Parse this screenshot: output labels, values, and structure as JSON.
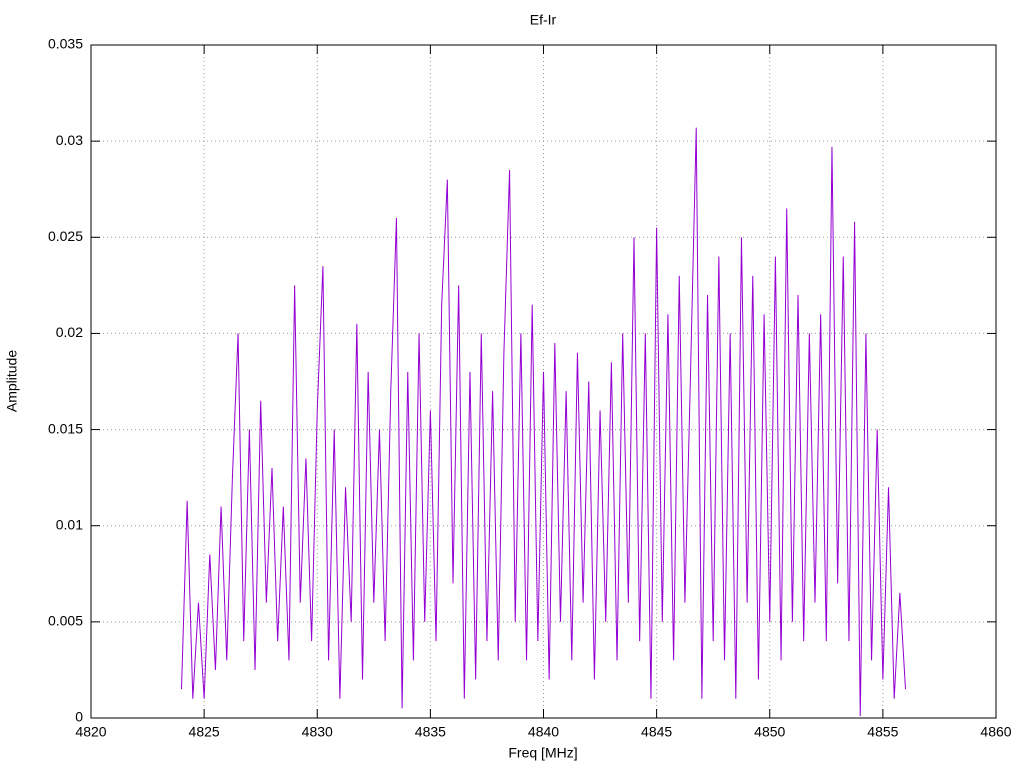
{
  "chart_data": {
    "type": "line",
    "title": "Ef-Ir",
    "x_label": "Freq [MHz]",
    "y_label": "Amplitude",
    "x": [
      4824.0,
      4824.25,
      4824.5,
      4824.75,
      4825.0,
      4825.25,
      4825.5,
      4825.75,
      4826.0,
      4826.25,
      4826.5,
      4826.75,
      4827.0,
      4827.25,
      4827.5,
      4827.75,
      4828.0,
      4828.25,
      4828.5,
      4828.75,
      4829.0,
      4829.25,
      4829.5,
      4829.75,
      4830.0,
      4830.25,
      4830.5,
      4830.75,
      4831.0,
      4831.25,
      4831.5,
      4831.75,
      4832.0,
      4832.25,
      4832.5,
      4832.75,
      4833.0,
      4833.25,
      4833.5,
      4833.75,
      4834.0,
      4834.25,
      4834.5,
      4834.75,
      4835.0,
      4835.25,
      4835.5,
      4835.75,
      4836.0,
      4836.25,
      4836.5,
      4836.75,
      4837.0,
      4837.25,
      4837.5,
      4837.75,
      4838.0,
      4838.25,
      4838.5,
      4838.75,
      4839.0,
      4839.25,
      4839.5,
      4839.75,
      4840.0,
      4840.25,
      4840.5,
      4840.75,
      4841.0,
      4841.25,
      4841.5,
      4841.75,
      4842.0,
      4842.25,
      4842.5,
      4842.75,
      4843.0,
      4843.25,
      4843.5,
      4843.75,
      4844.0,
      4844.25,
      4844.5,
      4844.75,
      4845.0,
      4845.25,
      4845.5,
      4845.75,
      4846.0,
      4846.25,
      4846.5,
      4846.75,
      4847.0,
      4847.25,
      4847.5,
      4847.75,
      4848.0,
      4848.25,
      4848.5,
      4848.75,
      4849.0,
      4849.25,
      4849.5,
      4849.75,
      4850.0,
      4850.25,
      4850.5,
      4850.75,
      4851.0,
      4851.25,
      4851.5,
      4851.75,
      4852.0,
      4852.25,
      4852.5,
      4852.75,
      4853.0,
      4853.25,
      4853.5,
      4853.75,
      4854.0,
      4854.25,
      4854.5,
      4854.75,
      4855.0,
      4855.25,
      4855.5,
      4855.75,
      4856.0
    ],
    "series": [
      {
        "color": "#9400d3",
        "values": [
          0.0015,
          0.0113,
          0.001,
          0.006,
          0.001,
          0.0085,
          0.0025,
          0.011,
          0.003,
          0.0125,
          0.02,
          0.004,
          0.015,
          0.0025,
          0.0165,
          0.006,
          0.013,
          0.004,
          0.011,
          0.003,
          0.0225,
          0.006,
          0.0135,
          0.004,
          0.016,
          0.0235,
          0.003,
          0.015,
          0.001,
          0.012,
          0.005,
          0.0205,
          0.002,
          0.018,
          0.006,
          0.015,
          0.004,
          0.017,
          0.026,
          0.0005,
          0.018,
          0.003,
          0.02,
          0.005,
          0.016,
          0.004,
          0.0215,
          0.028,
          0.007,
          0.0225,
          0.001,
          0.018,
          0.002,
          0.02,
          0.004,
          0.017,
          0.003,
          0.019,
          0.0285,
          0.005,
          0.02,
          0.003,
          0.0215,
          0.004,
          0.018,
          0.002,
          0.0195,
          0.005,
          0.017,
          0.003,
          0.019,
          0.006,
          0.0175,
          0.002,
          0.016,
          0.005,
          0.0185,
          0.003,
          0.02,
          0.006,
          0.025,
          0.004,
          0.02,
          0.001,
          0.0255,
          0.005,
          0.021,
          0.003,
          0.023,
          0.006,
          0.018,
          0.0307,
          0.001,
          0.022,
          0.004,
          0.024,
          0.003,
          0.02,
          0.001,
          0.025,
          0.006,
          0.023,
          0.002,
          0.021,
          0.005,
          0.024,
          0.003,
          0.0265,
          0.005,
          0.022,
          0.004,
          0.02,
          0.006,
          0.021,
          0.004,
          0.0297,
          0.007,
          0.024,
          0.004,
          0.0258,
          0.0001,
          0.02,
          0.003,
          0.015,
          0.002,
          0.012,
          0.001,
          0.0065,
          0.0015
        ]
      }
    ],
    "xlim": [
      4820,
      4860
    ],
    "xticks": [
      4820,
      4825,
      4830,
      4835,
      4840,
      4845,
      4850,
      4855,
      4860
    ],
    "ylim": [
      0,
      0.035
    ],
    "yticks": [
      0,
      0.005,
      0.01,
      0.015,
      0.02,
      0.025,
      0.03,
      0.035
    ],
    "grid": true
  }
}
